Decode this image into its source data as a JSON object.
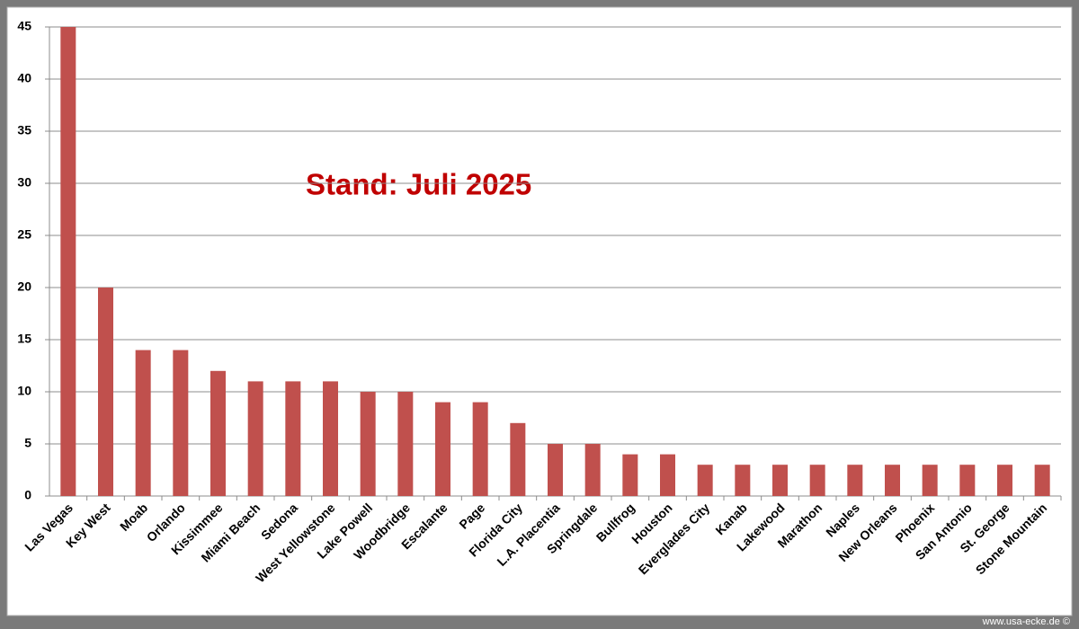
{
  "chart_data": {
    "type": "bar",
    "annotation": "Stand: Juli 2025",
    "footer": "www.usa-ecke.de ©",
    "categories": [
      "Las Vegas",
      "Key West",
      "Moab",
      "Orlando",
      "Kissimmee",
      "Miami Beach",
      "Sedona",
      "West Yellowstone",
      "Lake Powell",
      "Woodbridge",
      "Escalante",
      "Page",
      "Florida City",
      "L.A. Placentia",
      "Springdale",
      "Bullfrog",
      "Houston",
      "Everglades City",
      "Kanab",
      "Lakewood",
      "Marathon",
      "Naples",
      "New Orleans",
      "Phoenix",
      "San Antonio",
      "St. George",
      "Stone Mountain"
    ],
    "values": [
      45,
      20,
      14,
      14,
      12,
      11,
      11,
      11,
      10,
      10,
      9,
      9,
      7,
      5,
      5,
      4,
      4,
      3,
      3,
      3,
      3,
      3,
      3,
      3,
      3,
      3,
      3
    ],
    "color": "#c0504d",
    "ylim": [
      0,
      45
    ],
    "yticks": [
      0,
      5,
      10,
      15,
      20,
      25,
      30,
      35,
      40,
      45
    ],
    "grid": true
  }
}
